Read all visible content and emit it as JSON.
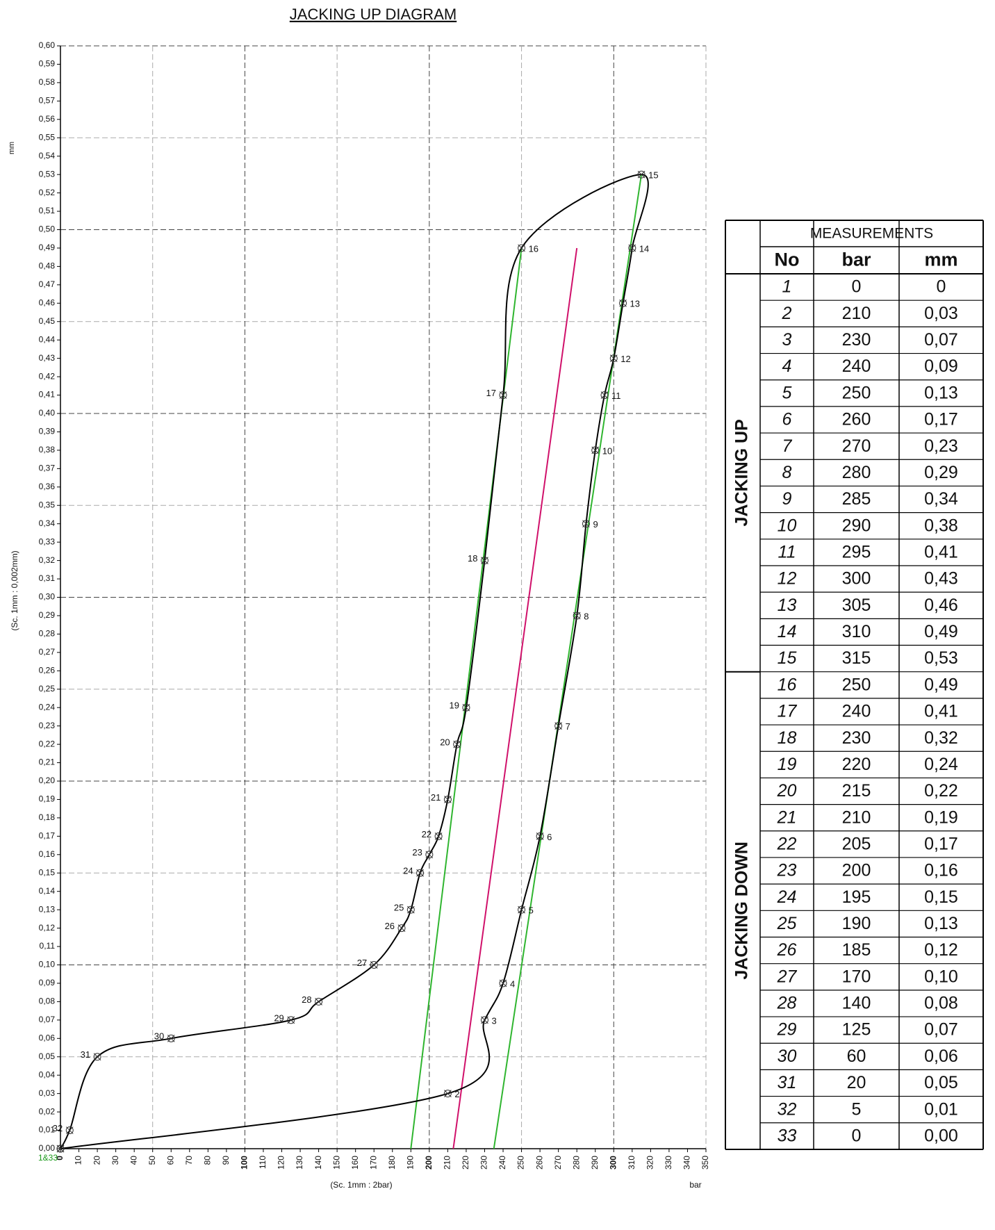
{
  "chart_data": {
    "type": "line",
    "title": "JACKING UP DIAGRAM",
    "y_label_top": "mm",
    "y_label": "(Sc. 1mm : 0,002mm)",
    "x_label": "(Sc. 1mm : 2bar)",
    "x_unit": "bar",
    "origin_label": "1&33",
    "origin_label_color": "#1a9a1a",
    "xlim": [
      0,
      350
    ],
    "ylim": [
      0,
      0.6
    ],
    "grid": true,
    "xticks": [
      0,
      10,
      20,
      30,
      40,
      50,
      60,
      70,
      80,
      90,
      100,
      110,
      120,
      130,
      140,
      150,
      160,
      170,
      180,
      190,
      200,
      210,
      220,
      230,
      240,
      250,
      260,
      270,
      280,
      290,
      300,
      310,
      320,
      330,
      340,
      350
    ],
    "yticks": [
      {
        "value": 0,
        "label": "0,00"
      },
      {
        "value": 0.01,
        "label": "0,01"
      },
      {
        "value": 0.02,
        "label": "0,02"
      },
      {
        "value": 0.03,
        "label": "0,03"
      },
      {
        "value": 0.04,
        "label": "0,04"
      },
      {
        "value": 0.05,
        "label": "0,05"
      },
      {
        "value": 0.06,
        "label": "0,06"
      },
      {
        "value": 0.07,
        "label": "0,07"
      },
      {
        "value": 0.08,
        "label": "0,08"
      },
      {
        "value": 0.09,
        "label": "0,09"
      },
      {
        "value": 0.1,
        "label": "0,10"
      },
      {
        "value": 0.11,
        "label": "0,11"
      },
      {
        "value": 0.12,
        "label": "0,12"
      },
      {
        "value": 0.13,
        "label": "0,13"
      },
      {
        "value": 0.14,
        "label": "0,14"
      },
      {
        "value": 0.15,
        "label": "0,15"
      },
      {
        "value": 0.16,
        "label": "0,16"
      },
      {
        "value": 0.17,
        "label": "0,17"
      },
      {
        "value": 0.18,
        "label": "0,18"
      },
      {
        "value": 0.19,
        "label": "0,19"
      },
      {
        "value": 0.2,
        "label": "0,20"
      },
      {
        "value": 0.21,
        "label": "0,21"
      },
      {
        "value": 0.22,
        "label": "0,22"
      },
      {
        "value": 0.23,
        "label": "0,23"
      },
      {
        "value": 0.24,
        "label": "0,24"
      },
      {
        "value": 0.25,
        "label": "0,25"
      },
      {
        "value": 0.26,
        "label": "0,26"
      },
      {
        "value": 0.27,
        "label": "0,27"
      },
      {
        "value": 0.28,
        "label": "0,28"
      },
      {
        "value": 0.29,
        "label": "0,29"
      },
      {
        "value": 0.3,
        "label": "0,30"
      },
      {
        "value": 0.31,
        "label": "0,31"
      },
      {
        "value": 0.32,
        "label": "0,32"
      },
      {
        "value": 0.33,
        "label": "0,33"
      },
      {
        "value": 0.34,
        "label": "0,34"
      },
      {
        "value": 0.35,
        "label": "0,35"
      },
      {
        "value": 0.36,
        "label": "0,36"
      },
      {
        "value": 0.37,
        "label": "0,37"
      },
      {
        "value": 0.38,
        "label": "0,38"
      },
      {
        "value": 0.39,
        "label": "0,39"
      },
      {
        "value": 0.4,
        "label": "0,40"
      },
      {
        "value": 0.41,
        "label": "0,41"
      },
      {
        "value": 0.42,
        "label": "0,42"
      },
      {
        "value": 0.43,
        "label": "0,43"
      },
      {
        "value": 0.44,
        "label": "0,44"
      },
      {
        "value": 0.45,
        "label": "0,45"
      },
      {
        "value": 0.46,
        "label": "0,46"
      },
      {
        "value": 0.47,
        "label": "0,47"
      },
      {
        "value": 0.48,
        "label": "0,48"
      },
      {
        "value": 0.49,
        "label": "0,49"
      },
      {
        "value": 0.5,
        "label": "0,50"
      },
      {
        "value": 0.51,
        "label": "0,51"
      },
      {
        "value": 0.52,
        "label": "0,52"
      },
      {
        "value": 0.53,
        "label": "0,53"
      },
      {
        "value": 0.54,
        "label": "0,54"
      },
      {
        "value": 0.55,
        "label": "0,55"
      },
      {
        "value": 0.56,
        "label": "0,56"
      },
      {
        "value": 0.57,
        "label": "0,57"
      },
      {
        "value": 0.58,
        "label": "0,58"
      },
      {
        "value": 0.59,
        "label": "0,59"
      },
      {
        "value": 0.6,
        "label": "0,60"
      }
    ],
    "series": [
      {
        "color": "#000000",
        "x": [
          0,
          210,
          230,
          240,
          250,
          260,
          270,
          280,
          285,
          290,
          295,
          300,
          305,
          310,
          315,
          250,
          240,
          230,
          220,
          215,
          210,
          205,
          200,
          195,
          190,
          185,
          170,
          140,
          125,
          60,
          20,
          5,
          0
        ],
        "values": [
          0,
          0.03,
          0.07,
          0.09,
          0.13,
          0.17,
          0.23,
          0.29,
          0.34,
          0.38,
          0.41,
          0.43,
          0.46,
          0.49,
          0.53,
          0.49,
          0.41,
          0.32,
          0.24,
          0.22,
          0.19,
          0.17,
          0.16,
          0.15,
          0.13,
          0.12,
          0.1,
          0.08,
          0.07,
          0.06,
          0.05,
          0.01,
          0
        ],
        "point_labels": [
          null,
          "2",
          "3",
          "4",
          "5",
          "6",
          "7",
          "8",
          "9",
          "10",
          "11",
          "12",
          "13",
          "14",
          "15",
          "16",
          "17",
          "18",
          "19",
          "20",
          "21",
          "22",
          "23",
          "24",
          "25",
          "26",
          "27",
          "28",
          "29",
          "30",
          "31",
          "32",
          null
        ]
      }
    ],
    "reference_lines": [
      {
        "color": "#2fb52f",
        "x": [
          190,
          250
        ],
        "values": [
          0,
          0.49
        ]
      },
      {
        "color": "#2fb52f",
        "x": [
          235,
          315
        ],
        "values": [
          0,
          0.53
        ]
      },
      {
        "color": "#d0106a",
        "x": [
          213,
          280
        ],
        "values": [
          0,
          0.49
        ]
      }
    ]
  },
  "table": {
    "title": "MEASUREMENTS",
    "headers": [
      "No",
      "bar",
      "mm"
    ],
    "groups": [
      {
        "label": "JACKING UP",
        "rows": [
          [
            "1",
            "0",
            "0"
          ],
          [
            "2",
            "210",
            "0,03"
          ],
          [
            "3",
            "230",
            "0,07"
          ],
          [
            "4",
            "240",
            "0,09"
          ],
          [
            "5",
            "250",
            "0,13"
          ],
          [
            "6",
            "260",
            "0,17"
          ],
          [
            "7",
            "270",
            "0,23"
          ],
          [
            "8",
            "280",
            "0,29"
          ],
          [
            "9",
            "285",
            "0,34"
          ],
          [
            "10",
            "290",
            "0,38"
          ],
          [
            "11",
            "295",
            "0,41"
          ],
          [
            "12",
            "300",
            "0,43"
          ],
          [
            "13",
            "305",
            "0,46"
          ],
          [
            "14",
            "310",
            "0,49"
          ],
          [
            "15",
            "315",
            "0,53"
          ]
        ]
      },
      {
        "label": "JACKING DOWN",
        "rows": [
          [
            "16",
            "250",
            "0,49"
          ],
          [
            "17",
            "240",
            "0,41"
          ],
          [
            "18",
            "230",
            "0,32"
          ],
          [
            "19",
            "220",
            "0,24"
          ],
          [
            "20",
            "215",
            "0,22"
          ],
          [
            "21",
            "210",
            "0,19"
          ],
          [
            "22",
            "205",
            "0,17"
          ],
          [
            "23",
            "200",
            "0,16"
          ],
          [
            "24",
            "195",
            "0,15"
          ],
          [
            "25",
            "190",
            "0,13"
          ],
          [
            "26",
            "185",
            "0,12"
          ],
          [
            "27",
            "170",
            "0,10"
          ],
          [
            "28",
            "140",
            "0,08"
          ],
          [
            "29",
            "125",
            "0,07"
          ],
          [
            "30",
            "60",
            "0,06"
          ],
          [
            "31",
            "20",
            "0,05"
          ],
          [
            "32",
            "5",
            "0,01"
          ],
          [
            "33",
            "0",
            "0,00"
          ]
        ]
      }
    ]
  }
}
